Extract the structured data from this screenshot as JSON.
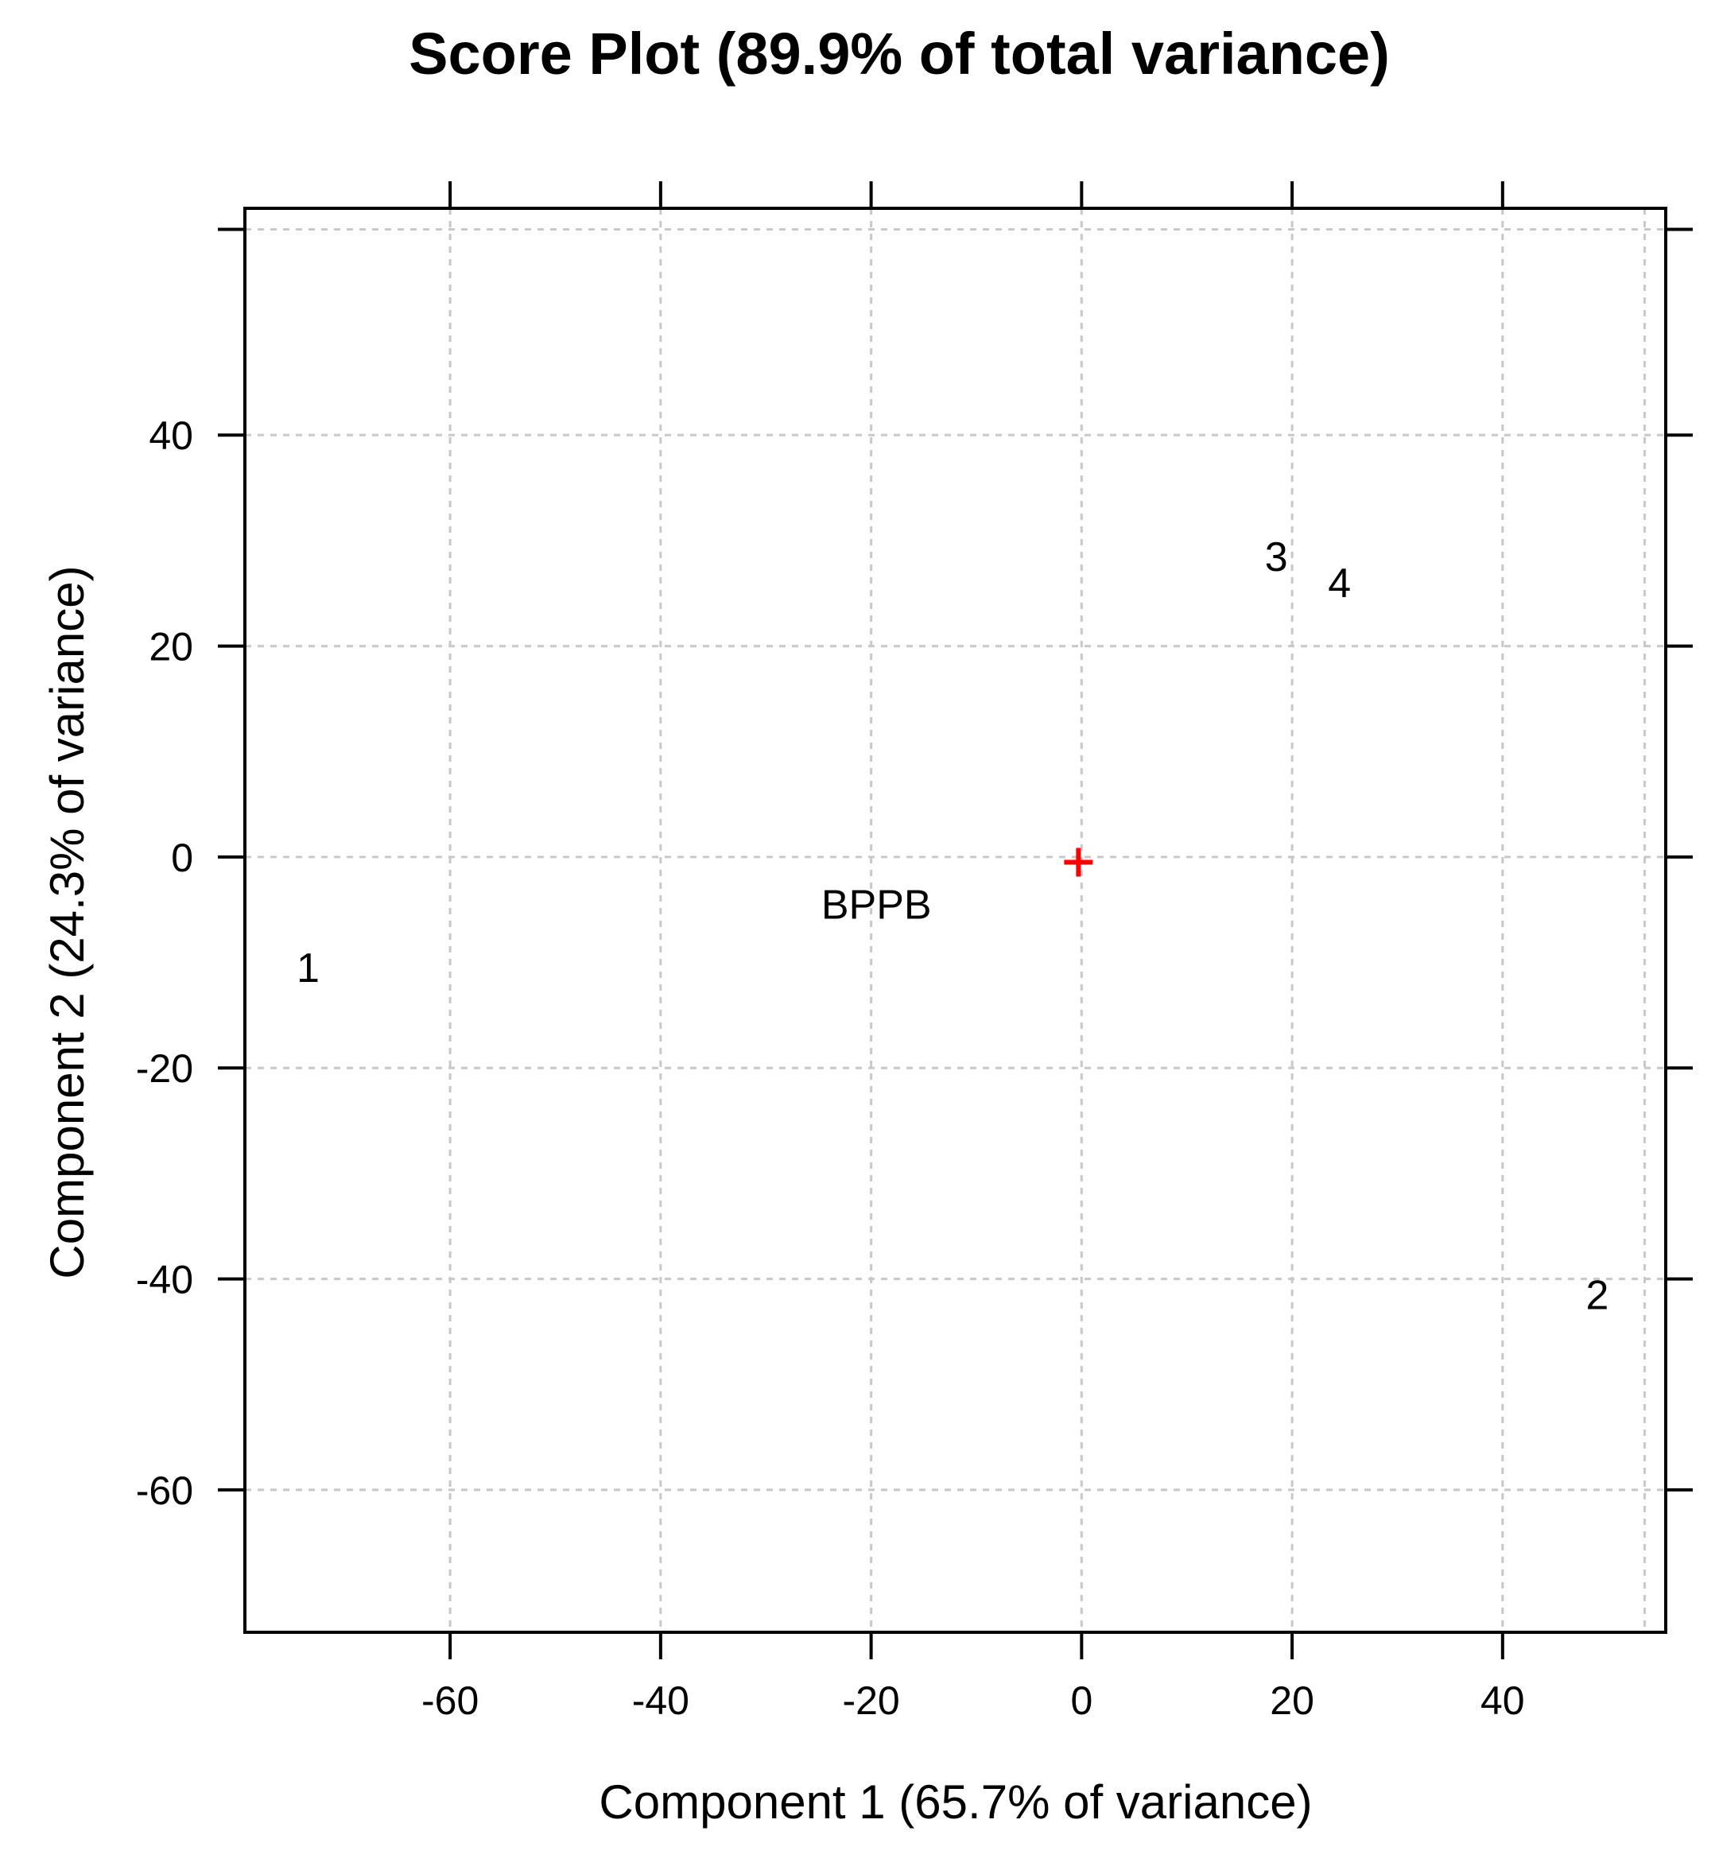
{
  "chart_data": {
    "type": "scatter",
    "title": "Score Plot (89.9% of total variance)",
    "xlabel": "Component 1 (65.7% of variance)",
    "ylabel": "Component 2 (24.3% of variance)",
    "xlim": [
      -79.5,
      55.5
    ],
    "ylim": [
      -73.5,
      61.5
    ],
    "xticks": [
      -60,
      -40,
      -20,
      0,
      20,
      40
    ],
    "yticks": [
      -60,
      -40,
      -20,
      0,
      20,
      40
    ],
    "xtick_labels": [
      "-60",
      "-40",
      "-20",
      "0",
      "20",
      "40"
    ],
    "ytick_labels": [
      "-60",
      "-40",
      "-20",
      "0",
      "20",
      "40"
    ],
    "grid": true,
    "points": [
      {
        "label": "1",
        "x": -73.5,
        "y": -10.5
      },
      {
        "label": "2",
        "x": 49,
        "y": -41.5
      },
      {
        "label": "3",
        "x": 18.5,
        "y": 28.5
      },
      {
        "label": "4",
        "x": 24.5,
        "y": 26
      },
      {
        "label": "BPPB",
        "x": -19.5,
        "y": -4.5
      }
    ],
    "centroid": {
      "x": -0.3,
      "y": -0.5,
      "marker": "+",
      "color": "#ff0000"
    }
  }
}
